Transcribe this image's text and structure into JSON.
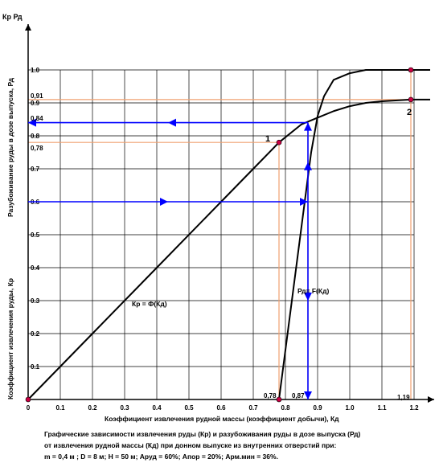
{
  "chart_data": {
    "type": "line",
    "x_axis": {
      "label": "Коэффициент извлечения рудной массы (коэффициент добычи),   Кд",
      "symbol": "Кд",
      "range": [
        0,
        1.2
      ],
      "ticks": [
        "0",
        "0.1",
        "0.2",
        "0.3",
        "0.4",
        "0.5",
        "0.6",
        "0.7",
        "0.8",
        "0.9",
        "1.0",
        "1.1",
        "1.2"
      ]
    },
    "y_axis": {
      "symbols": "Кр  Рд",
      "label_upper": "Разубоживание руды в дозе выпуска, Рд",
      "label_lower": "Коэффициент извлечения руды, Кр",
      "range": [
        0,
        1.0
      ],
      "ticks": [
        "0.1",
        "0.2",
        "0.3",
        "0.4",
        "0.5",
        "0.6",
        "0.7",
        "0.8",
        "0.9",
        "1.0"
      ]
    },
    "grid": true,
    "series": [
      {
        "name": "Кр = Ф(Кд)",
        "color": "#000000",
        "x": [
          0,
          0.2,
          0.4,
          0.6,
          0.7,
          0.78,
          0.85,
          0.9,
          0.95,
          1.0,
          1.05,
          1.1,
          1.19,
          1.25
        ],
        "y": [
          0,
          0.2,
          0.4,
          0.6,
          0.7,
          0.78,
          0.835,
          0.855,
          0.875,
          0.89,
          0.9,
          0.905,
          0.91,
          0.91
        ]
      },
      {
        "name": "Рд= F(Кд)",
        "color": "#000000",
        "x": [
          0.78,
          0.82,
          0.86,
          0.88,
          0.9,
          0.92,
          0.95,
          1.0,
          1.05,
          1.1,
          1.19,
          1.25
        ],
        "y": [
          0,
          0.3,
          0.6,
          0.75,
          0.86,
          0.92,
          0.97,
          0.99,
          1.0,
          1.0,
          1.0,
          1.0
        ]
      }
    ],
    "reference_lines": {
      "y_values": [
        "0,91",
        "0,84",
        "0,78"
      ],
      "x_values": [
        "0,78",
        "0,87",
        "1,19"
      ]
    },
    "points": [
      {
        "label": "1",
        "x": 0.78,
        "y": 0.78
      },
      {
        "label": "2",
        "x": 1.19,
        "y": 0.91
      }
    ],
    "extra_points": [
      {
        "x": 1.19,
        "y": 1.0
      },
      {
        "x": 0.78,
        "y": 0
      },
      {
        "x": 0,
        "y": 0
      }
    ],
    "arrows": [
      {
        "from": [
          0.87,
          0.84
        ],
        "to": [
          0,
          0.84
        ]
      },
      {
        "from": [
          0,
          0.6
        ],
        "to": [
          0.87,
          0.6
        ]
      },
      {
        "from": [
          0.87,
          0.6
        ],
        "to": [
          0.87,
          0
        ]
      },
      {
        "from": [
          0.87,
          0.6
        ],
        "to": [
          0.87,
          0.84
        ]
      }
    ],
    "colors": {
      "grid": "#000000",
      "reference": "#f0a070",
      "arrow": "#0000ff",
      "marker": "#cc0044"
    }
  },
  "caption": {
    "line1": "Графические зависимости извлечения руды (Кр) и разубоживания руды в дозе выпуска (Рд)",
    "line2": "от извлечения рудной массы (Кд) при донном выпуске из внутренних отверстий при:",
    "line3": "m = 0,4 м   ;   D = 8 м;   Н = 50 м;   Аруд = 60%;   Апор = 20%;   Арм.мин = 36%."
  }
}
